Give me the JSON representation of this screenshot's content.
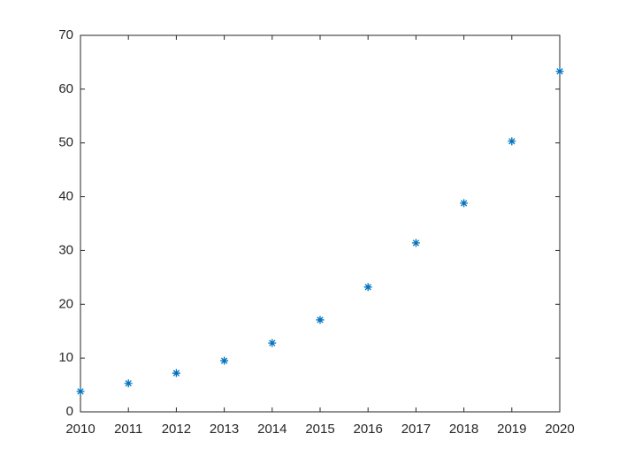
{
  "chart_data": {
    "type": "scatter",
    "x": [
      2010,
      2011,
      2012,
      2013,
      2014,
      2015,
      2016,
      2017,
      2018,
      2019,
      2020
    ],
    "values": [
      3.8,
      5.3,
      7.2,
      9.5,
      12.8,
      17.1,
      23.2,
      31.4,
      38.8,
      50.3,
      63.3
    ],
    "color": "#0072bd",
    "marker": "*",
    "xlim": [
      2010,
      2020
    ],
    "xticks": [
      2010,
      2011,
      2012,
      2013,
      2014,
      2015,
      2016,
      2017,
      2018,
      2019,
      2020
    ],
    "ylim": [
      0,
      70
    ],
    "yticks": [
      0,
      10,
      20,
      30,
      40,
      50,
      60,
      70
    ],
    "grid": false,
    "box": true
  }
}
